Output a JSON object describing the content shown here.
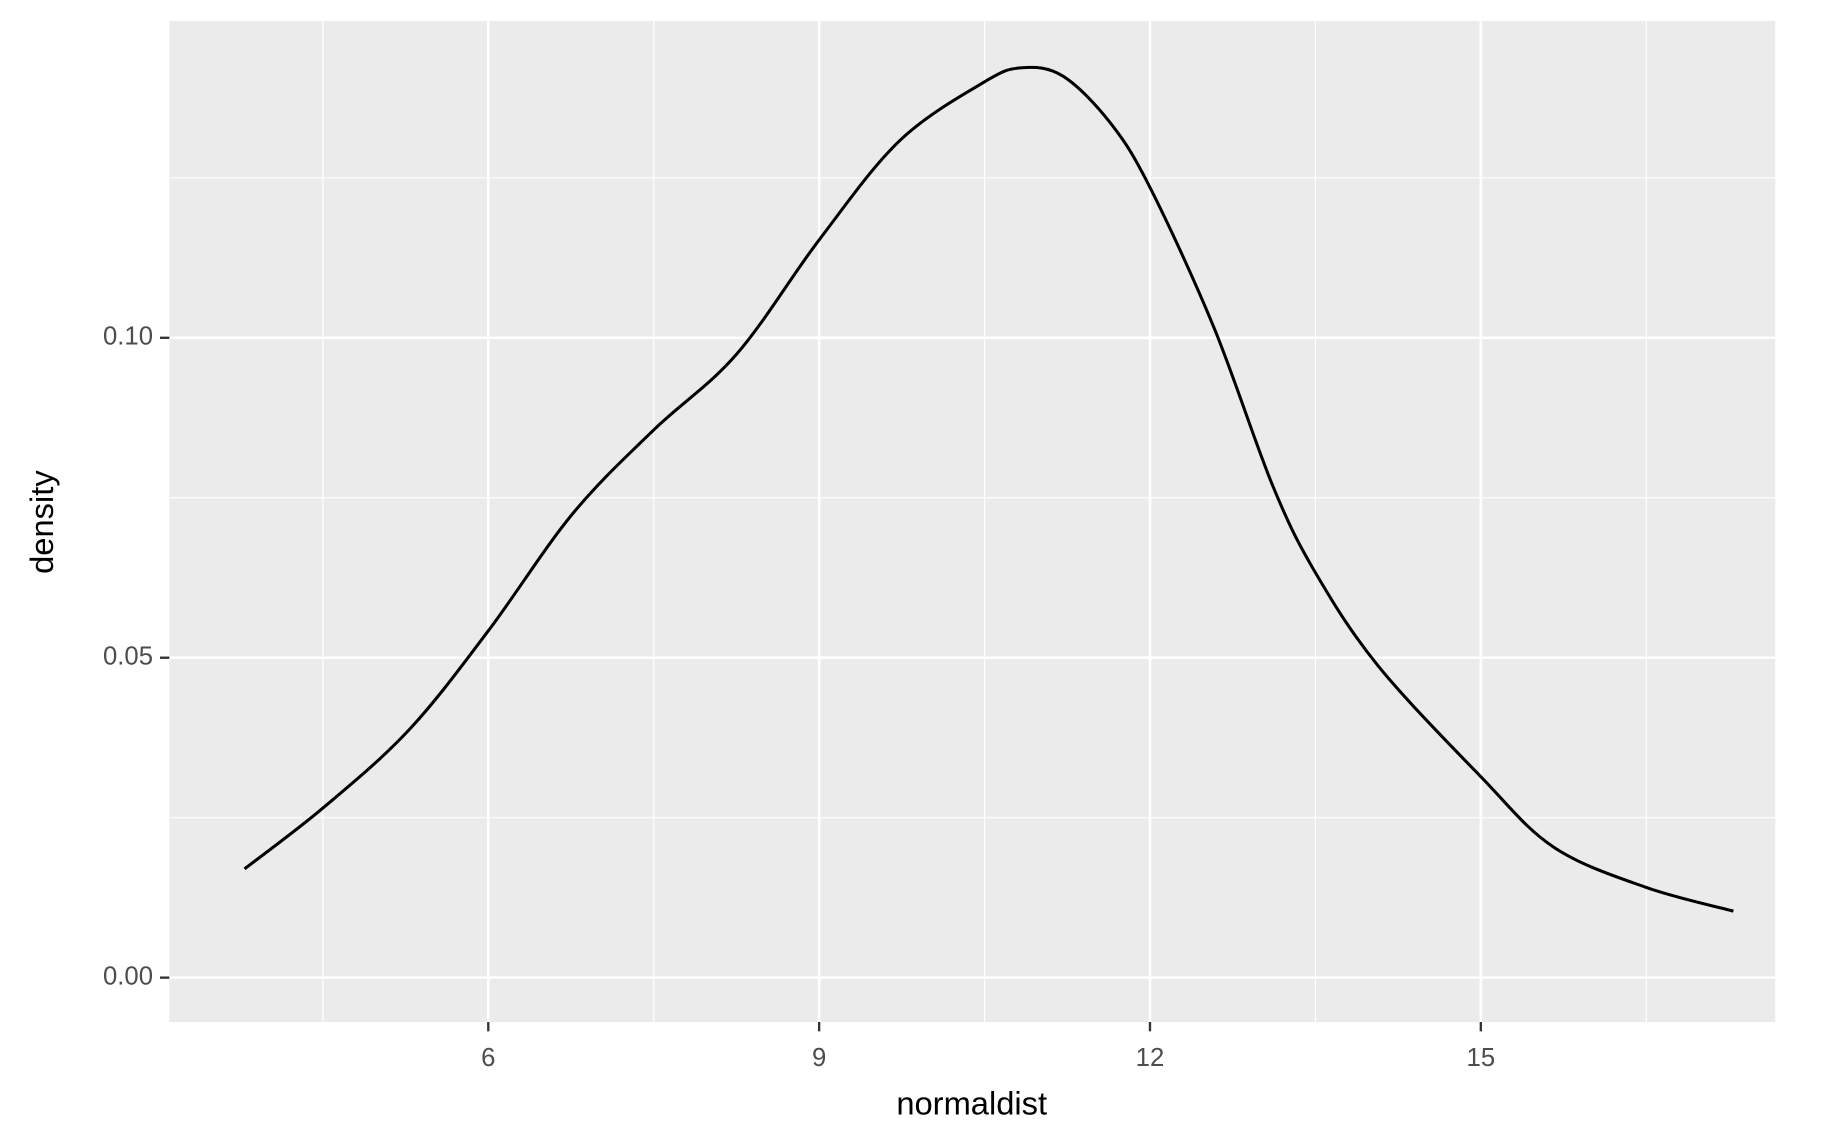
{
  "chart_data": {
    "type": "line",
    "x_label": "normaldist",
    "y_label": "density",
    "x": [
      3.79,
      4.5,
      5.28,
      6,
      6.76,
      7.5,
      8.25,
      9,
      9.73,
      10.5,
      10.84,
      11.21,
      11.64,
      12,
      12.58,
      13.11,
      13.5,
      14.07,
      15,
      15.66,
      16.5,
      17.29
    ],
    "series": [
      {
        "color": "#000000",
        "values": [
          0.017,
          0.0265,
          0.0387,
          0.0542,
          0.0724,
          0.0856,
          0.0974,
          0.1153,
          0.1308,
          0.14,
          0.1422,
          0.1409,
          0.1336,
          0.1235,
          0.1016,
          0.077,
          0.0633,
          0.0487,
          0.0314,
          0.0204,
          0.0141,
          0.0104
        ]
      }
    ],
    "xlim": [
      3.108,
      17.67
    ],
    "ylim": [
      -0.00693,
      0.1495
    ],
    "xticks": [
      6,
      9,
      12,
      15
    ],
    "yticks": [
      {
        "value": 0,
        "label": "0.00"
      },
      {
        "value": 0.05,
        "label": "0.05"
      },
      {
        "value": 0.1,
        "label": "0.10"
      }
    ],
    "x_minor_grid": [
      4.5,
      7.5,
      10.5,
      13.5,
      16.5
    ],
    "y_minor_grid": [
      0.025,
      0.075,
      0.125
    ],
    "grid": true,
    "panel_color": "#ebebeb"
  }
}
